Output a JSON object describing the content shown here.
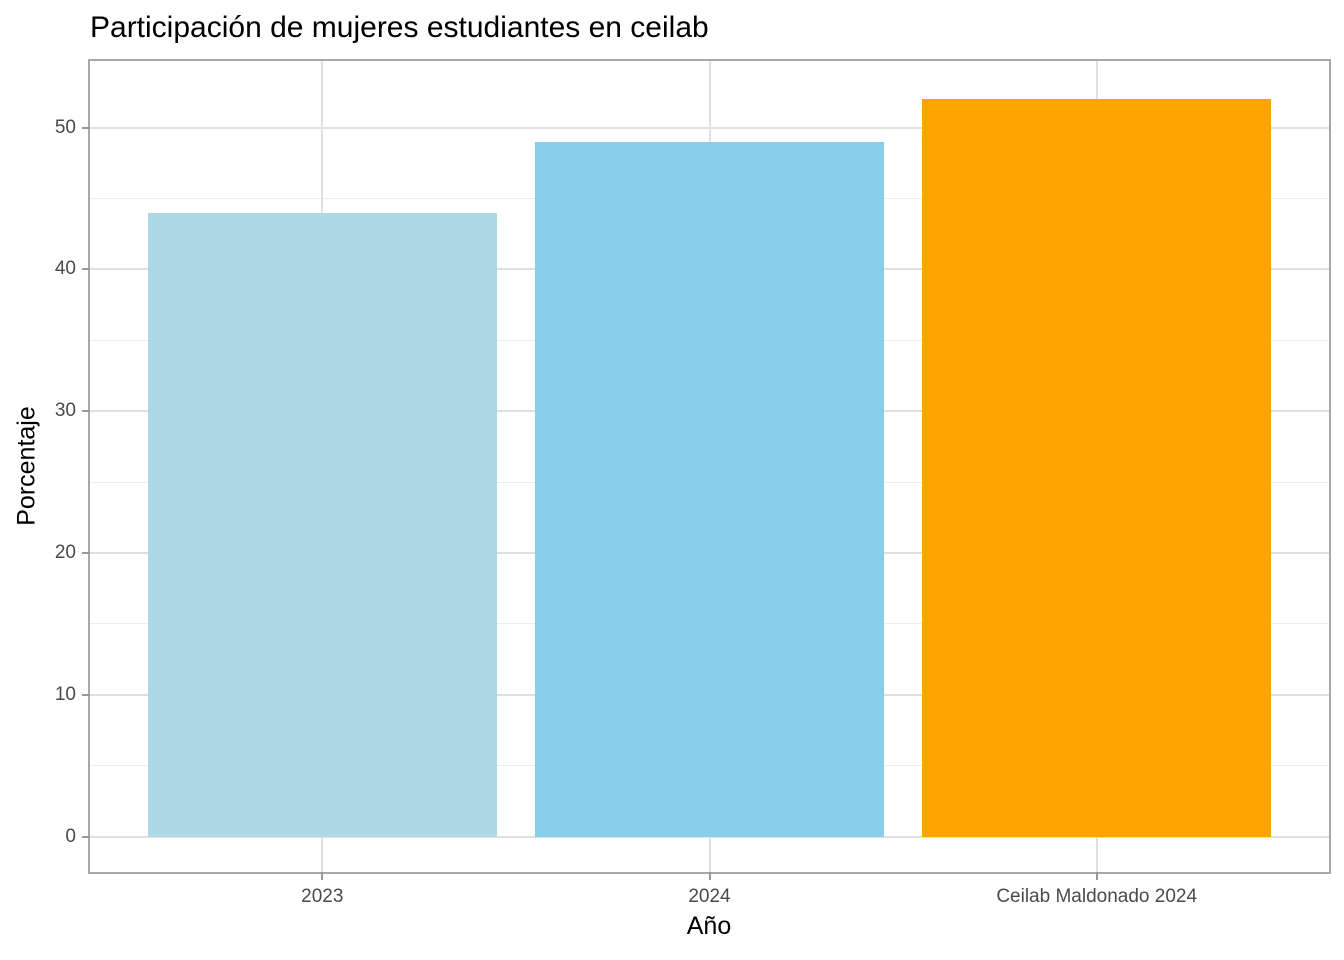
{
  "title": "Participación de mujeres estudiantes en ceilab",
  "chart_data": {
    "type": "bar",
    "title": "Participación de mujeres estudiantes en ceilab",
    "xlabel": "Año",
    "ylabel": "Porcentaje",
    "categories": [
      "2023",
      "2024",
      "Ceilab Maldonado 2024"
    ],
    "values": [
      44,
      49,
      52
    ],
    "bar_colors": [
      "#ADD8E6",
      "#87CEEB",
      "#FFA500"
    ],
    "y_ticks": [
      0,
      10,
      20,
      30,
      40,
      50
    ],
    "y_minor_ticks": [
      5,
      15,
      25,
      35,
      45
    ],
    "ylim": [
      -2.5,
      54.7
    ],
    "grid": "on",
    "legend": "none",
    "colors": {
      "background": "#FFFFFF",
      "panel_border": "#A8A8A8",
      "grid_major": "#E0E0E0",
      "grid_minor": "#EDEDED",
      "tick_mark": "#999999",
      "tick_label": "#4A4A4A",
      "title_text": "#000000"
    }
  }
}
